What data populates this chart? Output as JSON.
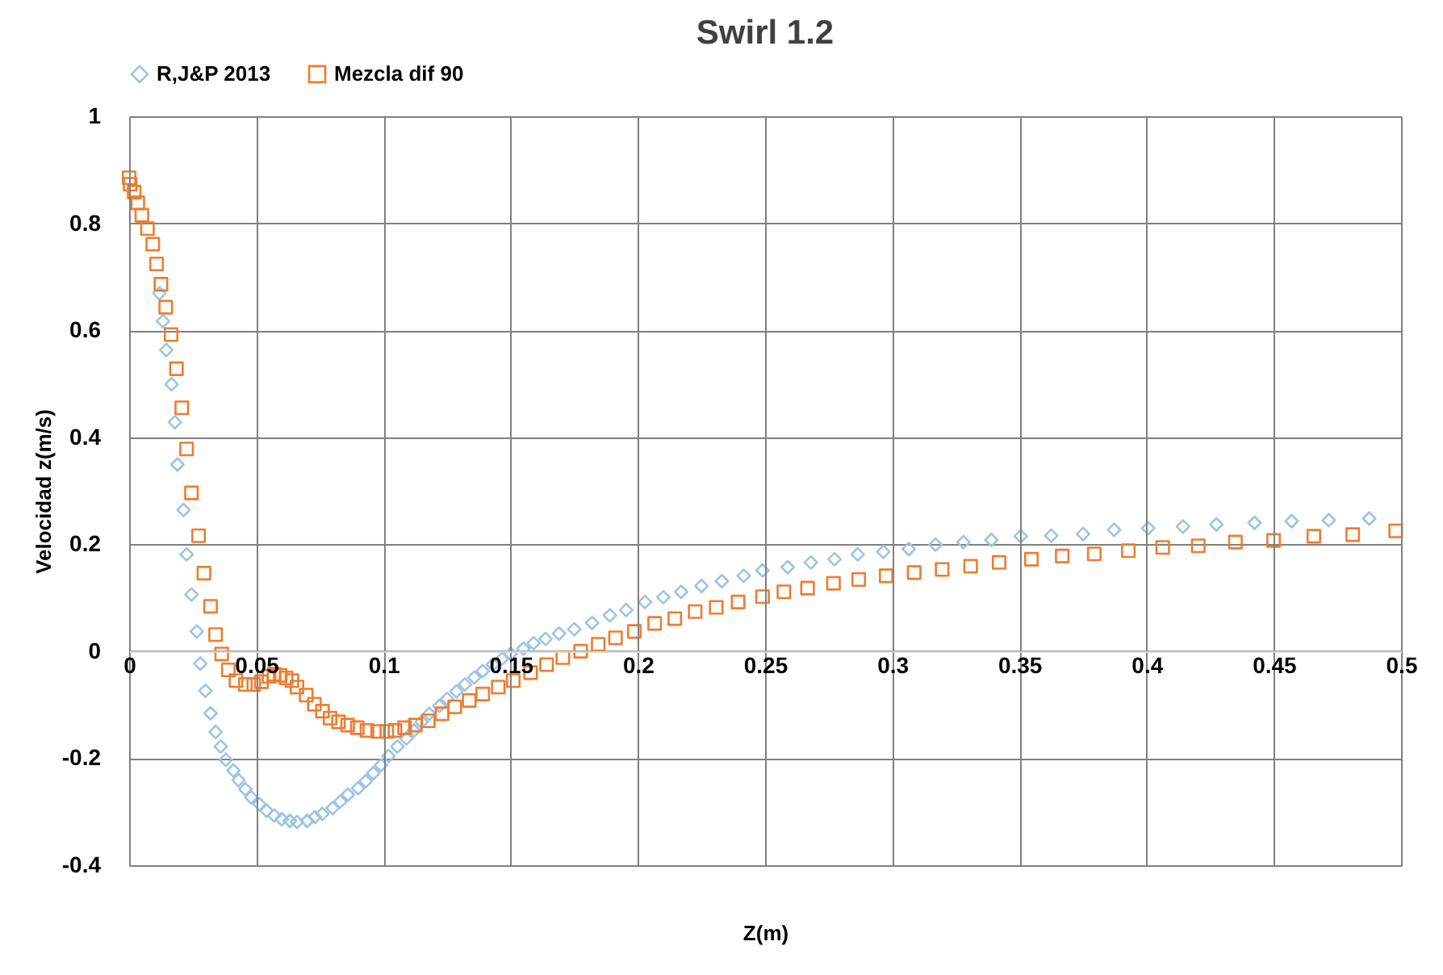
{
  "chart_data": {
    "type": "scatter",
    "title": "Swirl 1.2",
    "xlabel": "Z(m)",
    "ylabel": "Velocidad z(m/s)",
    "legend": "top",
    "grid": true,
    "xlim": [
      0,
      0.5
    ],
    "xticks": [
      0,
      0.05,
      0.1,
      0.15,
      0.2,
      0.25,
      0.3,
      0.35,
      0.4,
      0.45,
      0.5
    ],
    "ylim": [
      -0.4,
      1
    ],
    "yticks": [
      -0.4,
      -0.2,
      0,
      0.2,
      0.4,
      0.6,
      0.8,
      1
    ],
    "series": [
      {
        "name": "R,J&P 2013",
        "color": "#9dc3e6",
        "marker": "diamond",
        "x": [
          0.0119,
          0.0133,
          0.0146,
          0.0167,
          0.018,
          0.019,
          0.0214,
          0.0226,
          0.0245,
          0.0266,
          0.028,
          0.03,
          0.032,
          0.034,
          0.036,
          0.038,
          0.041,
          0.043,
          0.0457,
          0.048,
          0.0512,
          0.054,
          0.057,
          0.06,
          0.0632,
          0.066,
          0.07,
          0.073,
          0.076,
          0.08,
          0.083,
          0.086,
          0.09,
          0.093,
          0.096,
          0.099,
          0.102,
          0.1055,
          0.109,
          0.112,
          0.115,
          0.118,
          0.122,
          0.125,
          0.1287,
          0.132,
          0.1357,
          0.139,
          0.143,
          0.1466,
          0.15,
          0.155,
          0.159,
          0.1637,
          0.169,
          0.175,
          0.182,
          0.189,
          0.1954,
          0.2028,
          0.21,
          0.217,
          0.225,
          0.233,
          0.2416,
          0.249,
          0.2589,
          0.268,
          0.2773,
          0.2864,
          0.2965,
          0.3065,
          0.317,
          0.328,
          0.339,
          0.3505,
          0.3625,
          0.375,
          0.3872,
          0.4006,
          0.4143,
          0.4274,
          0.4424,
          0.457,
          0.4716,
          0.4875
        ],
        "values": [
          0.669,
          0.617,
          0.563,
          0.499,
          0.428,
          0.349,
          0.264,
          0.181,
          0.106,
          0.037,
          -0.023,
          -0.074,
          -0.116,
          -0.151,
          -0.178,
          -0.203,
          -0.223,
          -0.241,
          -0.258,
          -0.273,
          -0.286,
          -0.298,
          -0.307,
          -0.314,
          -0.317,
          -0.319,
          -0.317,
          -0.31,
          -0.304,
          -0.293,
          -0.281,
          -0.268,
          -0.256,
          -0.243,
          -0.228,
          -0.213,
          -0.196,
          -0.178,
          -0.163,
          -0.148,
          -0.132,
          -0.117,
          -0.102,
          -0.089,
          -0.075,
          -0.062,
          -0.049,
          -0.037,
          -0.025,
          -0.014,
          -0.005,
          0.005,
          0.015,
          0.023,
          0.033,
          0.041,
          0.053,
          0.067,
          0.077,
          0.092,
          0.101,
          0.111,
          0.122,
          0.131,
          0.141,
          0.151,
          0.157,
          0.166,
          0.172,
          0.181,
          0.186,
          0.191,
          0.199,
          0.204,
          0.208,
          0.215,
          0.216,
          0.219,
          0.227,
          0.23,
          0.233,
          0.237,
          0.24,
          0.243,
          0.245,
          0.248
        ]
      },
      {
        "name": "Mezcla dif 90",
        "color": "#ed7d31",
        "marker": "square",
        "x": [
          0,
          0.0004,
          0.002,
          0.0034,
          0.005,
          0.0072,
          0.0093,
          0.0108,
          0.0125,
          0.0144,
          0.0165,
          0.0186,
          0.0207,
          0.0226,
          0.0245,
          0.0273,
          0.0294,
          0.032,
          0.034,
          0.0364,
          0.039,
          0.042,
          0.0457,
          0.049,
          0.052,
          0.055,
          0.057,
          0.0594,
          0.0617,
          0.064,
          0.066,
          0.0696,
          0.0728,
          0.076,
          0.079,
          0.0823,
          0.0859,
          0.0897,
          0.0935,
          0.0977,
          0.1013,
          0.1045,
          0.1083,
          0.1125,
          0.1176,
          0.123,
          0.128,
          0.1337,
          0.139,
          0.1451,
          0.151,
          0.1578,
          0.1641,
          0.1705,
          0.1775,
          0.1844,
          0.1912,
          0.1986,
          0.2066,
          0.2145,
          0.2225,
          0.2308,
          0.2394,
          0.249,
          0.2574,
          0.2667,
          0.2769,
          0.2868,
          0.2976,
          0.3086,
          0.3196,
          0.3308,
          0.342,
          0.3547,
          0.3668,
          0.3794,
          0.3928,
          0.4063,
          0.4203,
          0.4349,
          0.4499,
          0.4657,
          0.481,
          0.4979
        ],
        "values": [
          0.885,
          0.873,
          0.858,
          0.838,
          0.815,
          0.79,
          0.761,
          0.724,
          0.686,
          0.643,
          0.592,
          0.528,
          0.455,
          0.378,
          0.296,
          0.216,
          0.146,
          0.084,
          0.031,
          -0.005,
          -0.035,
          -0.055,
          -0.062,
          -0.062,
          -0.057,
          -0.047,
          -0.043,
          -0.045,
          -0.05,
          -0.055,
          -0.067,
          -0.082,
          -0.099,
          -0.112,
          -0.125,
          -0.132,
          -0.138,
          -0.143,
          -0.148,
          -0.15,
          -0.15,
          -0.148,
          -0.143,
          -0.138,
          -0.13,
          -0.117,
          -0.104,
          -0.092,
          -0.08,
          -0.067,
          -0.055,
          -0.04,
          -0.025,
          -0.012,
          0.0,
          0.013,
          0.025,
          0.037,
          0.052,
          0.061,
          0.074,
          0.082,
          0.092,
          0.102,
          0.111,
          0.118,
          0.127,
          0.134,
          0.141,
          0.147,
          0.153,
          0.159,
          0.166,
          0.172,
          0.178,
          0.182,
          0.188,
          0.194,
          0.197,
          0.204,
          0.207,
          0.215,
          0.218,
          0.225
        ]
      }
    ]
  }
}
